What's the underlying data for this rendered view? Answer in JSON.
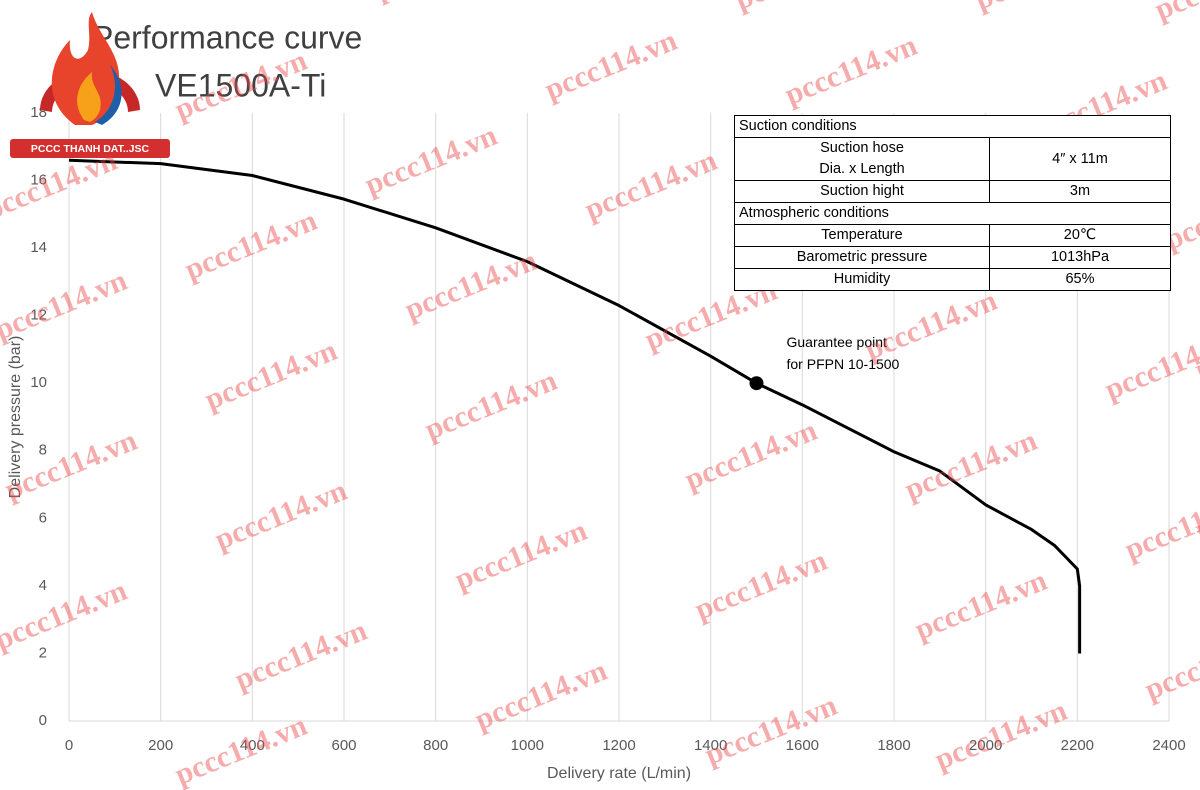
{
  "chart_data": {
    "type": "line",
    "title": "Performance curve",
    "subtitle": "VE1500A-Ti",
    "x_label": "Delivery rate (L/min)",
    "y_label": "Delivery pressure (bar)",
    "x": [
      0,
      200,
      400,
      600,
      800,
      1000,
      1200,
      1400,
      1500,
      1600,
      1800,
      1900,
      2000,
      2100,
      2150,
      2200,
      2205,
      2205
    ],
    "series": [
      {
        "color": "#000000",
        "values": [
          16.6,
          16.5,
          16.15,
          15.45,
          14.6,
          13.6,
          12.3,
          10.8,
          10,
          9.36,
          7.97,
          7.4,
          6.4,
          5.67,
          5.2,
          4.5,
          4,
          2
        ]
      }
    ],
    "point": {
      "x": 1500,
      "y": 10,
      "label": [
        "Guarantee point",
        "for PFPN 10-1500"
      ]
    },
    "xlim": [
      0,
      2400
    ],
    "xticks": [
      0,
      200,
      400,
      600,
      800,
      1000,
      1200,
      1400,
      1600,
      1800,
      2000,
      2200,
      2400
    ],
    "ylim": [
      0,
      18
    ],
    "yticks": [
      0,
      2,
      4,
      6,
      8,
      10,
      12,
      14,
      16,
      18
    ],
    "grid": "x"
  },
  "table": {
    "rows": [
      [
        "Suction conditions"
      ],
      [
        [
          "Suction hose",
          "Dia. x Length"
        ],
        "4″ x 11m"
      ],
      [
        "Suction hight",
        "3m"
      ],
      [
        "Atmospheric conditions"
      ],
      [
        "Temperature",
        "20℃"
      ],
      [
        "Barometric pressure",
        "1013hPa"
      ],
      [
        "Humidity",
        "65%"
      ]
    ]
  },
  "logo": {
    "text": "PCCC THANH DAT..JSC"
  },
  "watermark": "pccc114.vn"
}
